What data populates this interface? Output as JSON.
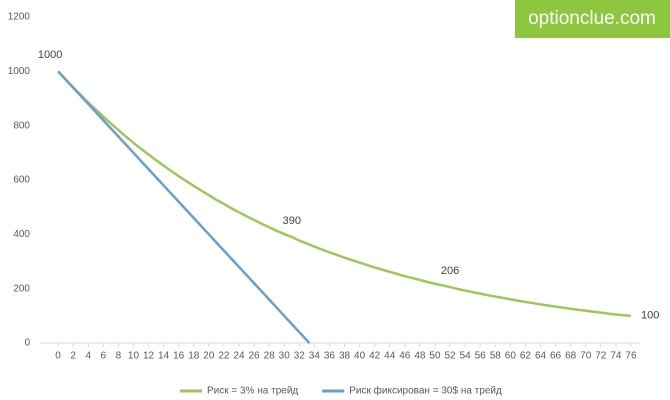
{
  "watermark": "optionclue.com",
  "chart_data": {
    "type": "line",
    "x": [
      0,
      1,
      2,
      3,
      4,
      5,
      6,
      7,
      8,
      9,
      10,
      11,
      12,
      13,
      14,
      15,
      16,
      17,
      18,
      19,
      20,
      21,
      22,
      23,
      24,
      25,
      26,
      27,
      28,
      29,
      30,
      31,
      32,
      33,
      34,
      35,
      36,
      37,
      38,
      39,
      40,
      41,
      42,
      43,
      44,
      45,
      46,
      47,
      48,
      49,
      50,
      51,
      52,
      53,
      54,
      55,
      56,
      57,
      58,
      59,
      60,
      61,
      62,
      63,
      64,
      65,
      66,
      67,
      68,
      69,
      70,
      71,
      72,
      73,
      74,
      75,
      76
    ],
    "series": [
      {
        "name": "Риск = 3% на трейд",
        "color": "#9dc65e",
        "values": [
          1000,
          970,
          941,
          913,
          885,
          859,
          833,
          808,
          784,
          760,
          737,
          715,
          694,
          673,
          653,
          633,
          614,
          596,
          578,
          561,
          544,
          527,
          512,
          496,
          481,
          467,
          453,
          439,
          426,
          413,
          401,
          390,
          377,
          366,
          355,
          344,
          334,
          324,
          314,
          305,
          296,
          287,
          278,
          270,
          262,
          254,
          246,
          239,
          232,
          225,
          218,
          212,
          206,
          199,
          193,
          187,
          182,
          176,
          171,
          166,
          161,
          156,
          151,
          147,
          142,
          138,
          134,
          130,
          126,
          122,
          119,
          115,
          112,
          108,
          105,
          102,
          100
        ],
        "value_labels": [
          "1000",
          null,
          null,
          null,
          null,
          null,
          null,
          null,
          null,
          null,
          null,
          null,
          null,
          null,
          null,
          null,
          null,
          null,
          null,
          null,
          null,
          null,
          null,
          null,
          null,
          null,
          null,
          null,
          null,
          null,
          null,
          "390",
          null,
          null,
          null,
          null,
          null,
          null,
          null,
          null,
          null,
          null,
          null,
          null,
          null,
          null,
          null,
          null,
          null,
          null,
          null,
          null,
          "206",
          null,
          null,
          null,
          null,
          null,
          null,
          null,
          null,
          null,
          null,
          null,
          null,
          null,
          null,
          null,
          null,
          null,
          null,
          null,
          null,
          null,
          null,
          null,
          "100"
        ]
      },
      {
        "name": "Риск фиксирован = 30$ на трейд",
        "color": "#6a9fc8",
        "x": [
          0,
          1,
          2,
          3,
          4,
          5,
          6,
          7,
          8,
          9,
          10,
          11,
          12,
          13,
          14,
          15,
          16,
          17,
          18,
          19,
          20,
          21,
          22,
          23,
          24,
          25,
          26,
          27,
          28,
          29,
          30,
          31,
          32,
          33,
          33.33
        ],
        "values": [
          1000,
          970,
          940,
          910,
          880,
          850,
          820,
          790,
          760,
          730,
          700,
          670,
          640,
          610,
          580,
          550,
          520,
          490,
          460,
          430,
          400,
          370,
          340,
          310,
          280,
          250,
          220,
          190,
          160,
          130,
          100,
          70,
          40,
          10,
          0
        ]
      }
    ],
    "xlim": [
      -2.4,
      77.2
    ],
    "xticks": [
      0,
      2,
      4,
      6,
      8,
      10,
      12,
      14,
      16,
      18,
      20,
      22,
      24,
      26,
      28,
      30,
      32,
      34,
      36,
      38,
      40,
      42,
      44,
      46,
      48,
      50,
      52,
      54,
      56,
      58,
      60,
      62,
      64,
      66,
      68,
      70,
      72,
      74,
      76
    ],
    "ylim": [
      0,
      1200
    ],
    "yticks": [
      0,
      200,
      400,
      600,
      800,
      1000,
      1200
    ],
    "grid": false,
    "legend": "bottom"
  }
}
